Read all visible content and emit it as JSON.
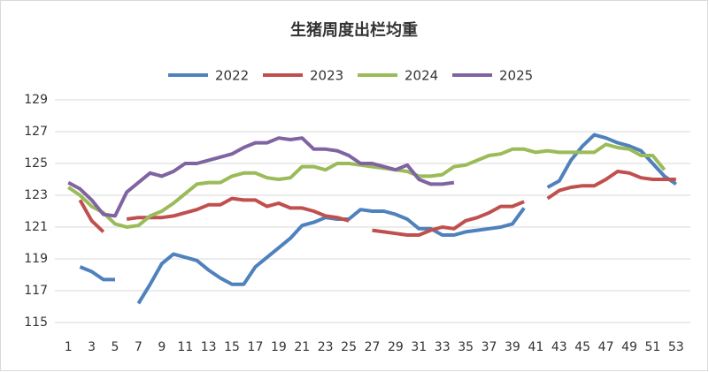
{
  "chart_data": {
    "type": "line",
    "title": "生猪周度出栏均重",
    "x": [
      1,
      2,
      3,
      4,
      5,
      6,
      7,
      8,
      9,
      10,
      11,
      12,
      13,
      14,
      15,
      16,
      17,
      18,
      19,
      20,
      21,
      22,
      23,
      24,
      25,
      26,
      27,
      28,
      29,
      30,
      31,
      32,
      33,
      34,
      35,
      36,
      37,
      38,
      39,
      40,
      41,
      42,
      43,
      44,
      45,
      46,
      47,
      48,
      49,
      50,
      51,
      52,
      53
    ],
    "series": [
      {
        "name": "2022",
        "color": "#4f81bd",
        "values": [
          null,
          118.5,
          118.2,
          117.7,
          117.7,
          null,
          116.2,
          117.4,
          118.7,
          119.3,
          119.1,
          118.9,
          118.3,
          117.8,
          117.4,
          117.4,
          118.5,
          119.1,
          119.7,
          120.3,
          121.1,
          121.3,
          121.6,
          121.5,
          121.5,
          122.1,
          122.0,
          122.0,
          121.8,
          121.5,
          120.9,
          120.9,
          120.5,
          120.5,
          120.7,
          120.8,
          120.9,
          121.0,
          121.2,
          122.2,
          null,
          123.5,
          123.9,
          125.2,
          126.1,
          126.8,
          126.6,
          126.3,
          126.1,
          125.8,
          125.0,
          124.2,
          123.7
        ]
      },
      {
        "name": "2023",
        "color": "#c0504d",
        "values": [
          null,
          122.7,
          121.4,
          120.7,
          null,
          121.5,
          121.6,
          121.6,
          121.6,
          121.7,
          121.9,
          122.1,
          122.4,
          122.4,
          122.8,
          122.7,
          122.7,
          122.3,
          122.5,
          122.2,
          122.2,
          122.0,
          121.7,
          121.6,
          121.4,
          null,
          120.8,
          120.7,
          120.6,
          120.5,
          120.5,
          120.8,
          121.0,
          120.9,
          121.4,
          121.6,
          121.9,
          122.3,
          122.3,
          122.6,
          null,
          122.8,
          123.3,
          123.5,
          123.6,
          123.6,
          124.0,
          124.5,
          124.4,
          124.1,
          124.0,
          124.0,
          124.0
        ]
      },
      {
        "name": "2024",
        "color": "#9bbb59",
        "values": [
          123.5,
          123.0,
          122.3,
          121.9,
          121.2,
          121.0,
          121.1,
          121.7,
          122.0,
          122.5,
          123.1,
          123.7,
          123.8,
          123.8,
          124.2,
          124.4,
          124.4,
          124.1,
          124.0,
          124.1,
          124.8,
          124.8,
          124.6,
          125.0,
          125.0,
          124.9,
          124.8,
          124.7,
          124.6,
          124.5,
          124.2,
          124.2,
          124.3,
          124.8,
          124.9,
          125.2,
          125.5,
          125.6,
          125.9,
          125.9,
          125.7,
          125.8,
          125.7,
          125.7,
          125.7,
          125.7,
          126.2,
          126.0,
          125.9,
          125.5,
          125.5,
          124.6,
          null
        ]
      },
      {
        "name": "2025",
        "color": "#8064a2",
        "values": [
          123.8,
          123.4,
          122.7,
          121.8,
          121.7,
          123.2,
          123.8,
          124.4,
          124.2,
          124.5,
          125.0,
          125.0,
          125.2,
          125.4,
          125.6,
          126.0,
          126.3,
          126.3,
          126.6,
          126.5,
          126.6,
          125.9,
          125.9,
          125.8,
          125.5,
          125.0,
          125.0,
          124.8,
          124.6,
          124.9,
          124.0,
          123.7,
          123.7,
          123.8,
          null,
          null,
          null,
          null,
          null,
          null,
          null,
          null,
          null,
          null,
          null,
          null,
          null,
          null,
          null,
          null,
          null,
          null,
          null
        ]
      }
    ],
    "xlim": [
      0,
      54
    ],
    "xticks": [
      1,
      3,
      5,
      7,
      9,
      11,
      13,
      15,
      17,
      19,
      21,
      23,
      25,
      27,
      29,
      31,
      33,
      35,
      37,
      39,
      41,
      43,
      45,
      47,
      49,
      51,
      53
    ],
    "ylim": [
      115,
      129
    ],
    "yticks": [
      115,
      117,
      119,
      121,
      123,
      125,
      127,
      129
    ],
    "grid": true
  }
}
